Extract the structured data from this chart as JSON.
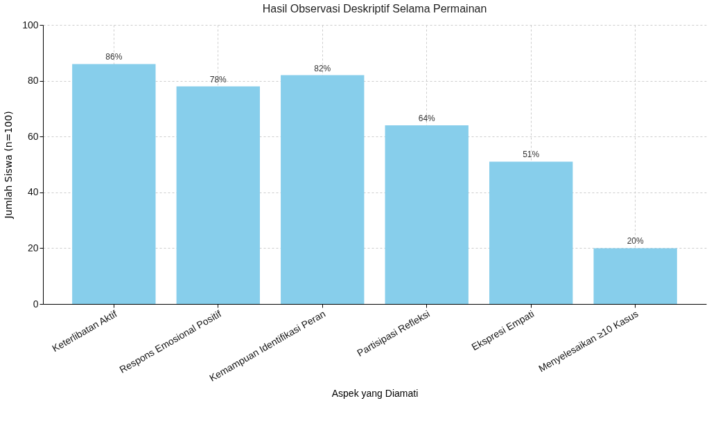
{
  "chart_data": {
    "type": "bar",
    "title": "Hasil Observasi Deskriptif Selama Permainan",
    "xlabel": "Aspek yang Diamati",
    "ylabel": "Jumlah Siswa (n=100)",
    "categories": [
      "Keterlibatan Aktif",
      "Respons Emosional Positif",
      "Kemampuan Identifikasi Peran",
      "Partisipasi Refleksi",
      "Ekspresi Empati",
      "Menyelesaikan ≥10 Kasus"
    ],
    "values": [
      86,
      78,
      82,
      64,
      51,
      20
    ],
    "value_labels": [
      "86%",
      "78%",
      "82%",
      "64%",
      "51%",
      "20%"
    ],
    "color": "#87ceeb",
    "ylim": [
      0,
      100
    ],
    "yticks": [
      0,
      20,
      40,
      60,
      80,
      100
    ],
    "grid": true
  }
}
